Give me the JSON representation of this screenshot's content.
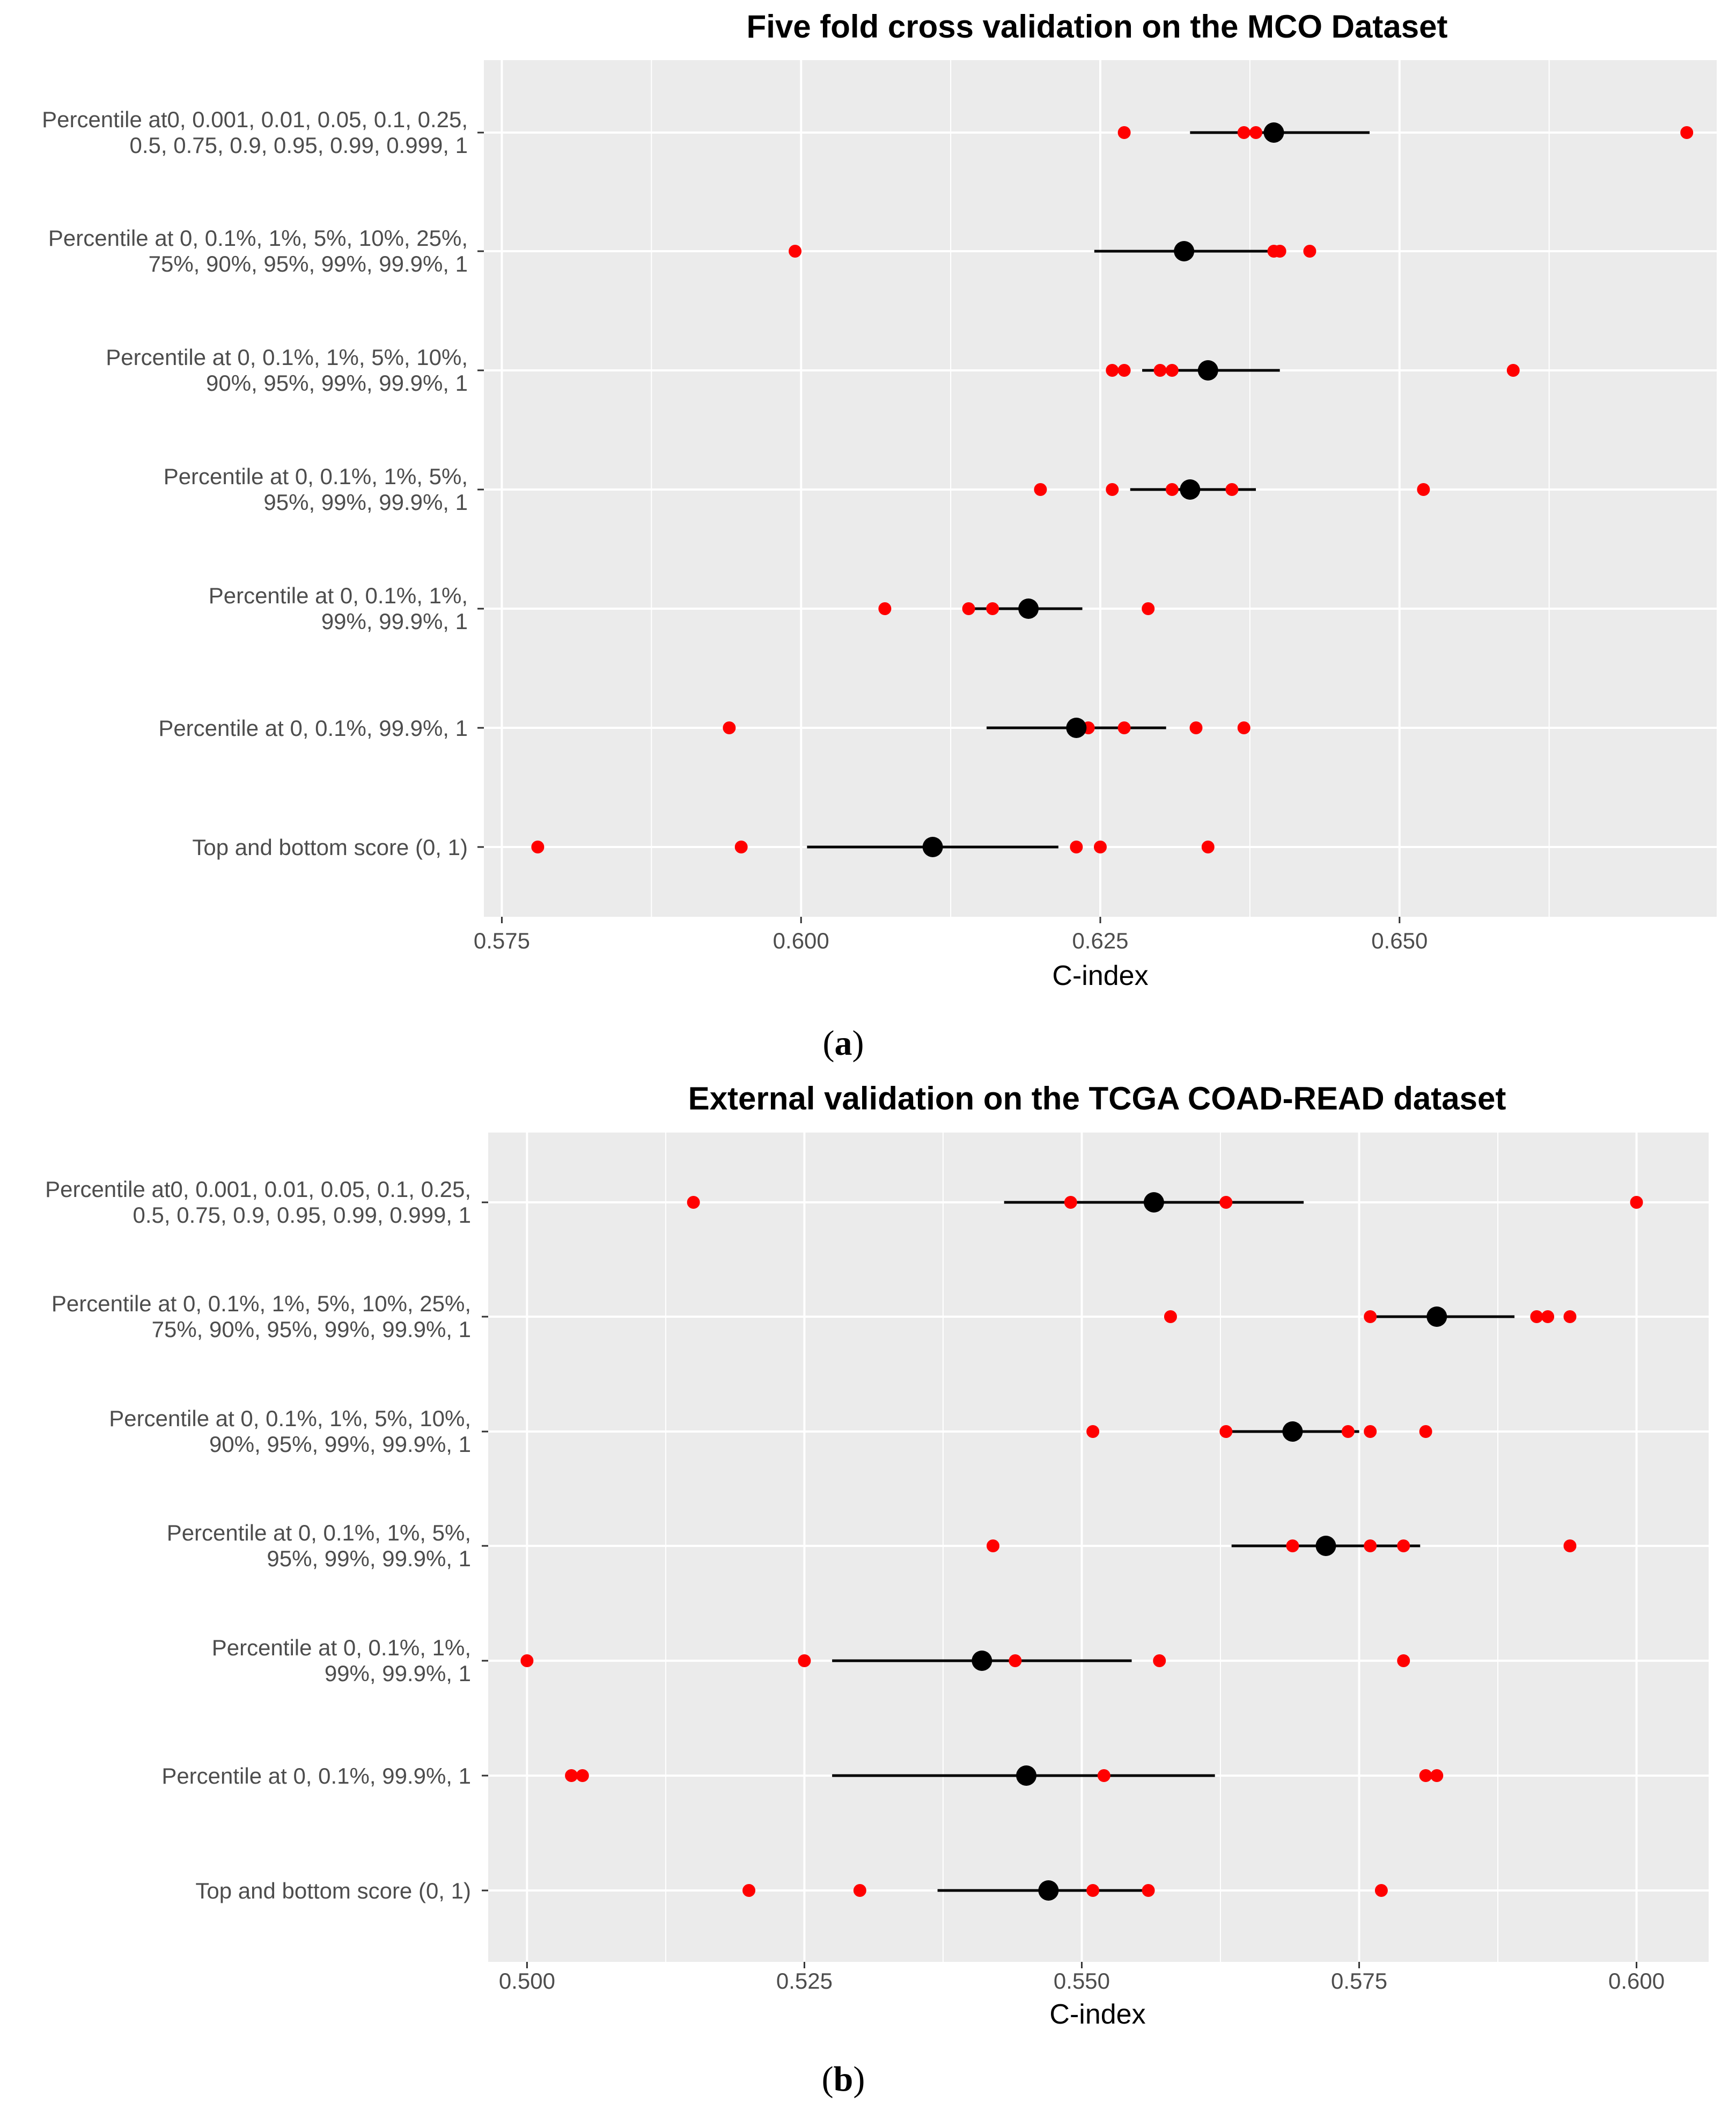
{
  "chart_data": [
    {
      "type": "scatter",
      "caption": "a",
      "title": "Five fold  cross validation on the MCO Dataset",
      "xlabel": "C-index",
      "ylabel": "",
      "xlim": [
        0.5735,
        0.6765
      ],
      "grid": true,
      "x_ticks": [
        0.575,
        0.6,
        0.625,
        0.65
      ],
      "x_tick_labels": [
        "0.575",
        "0.600",
        "0.625",
        "0.650"
      ],
      "rows": [
        {
          "label_lines": [
            "Percentile at0, 0.001, 0.01, 0.05, 0.1, 0.25,",
            "0.5, 0.75, 0.9, 0.95, 0.99, 0.999, 1"
          ],
          "fold_values": [
            0.627,
            0.637,
            0.638,
            0.6395,
            0.674
          ],
          "mean": 0.6395,
          "ci": [
            0.6325,
            0.6475
          ]
        },
        {
          "label_lines": [
            "Percentile at 0, 0.1%, 1%, 5%, 10%, 25%,",
            "75%, 90%, 95%, 99%, 99.9%, 1"
          ],
          "fold_values": [
            0.5995,
            0.632,
            0.6395,
            0.6425,
            0.64
          ],
          "mean": 0.632,
          "ci": [
            0.6245,
            0.64
          ]
        },
        {
          "label_lines": [
            "Percentile at 0, 0.1%, 1%, 5%, 10%,",
            "90%, 95%, 99%, 99.9%, 1"
          ],
          "fold_values": [
            0.626,
            0.627,
            0.63,
            0.631,
            0.6595
          ],
          "mean": 0.634,
          "ci": [
            0.6285,
            0.64
          ]
        },
        {
          "label_lines": [
            "Percentile at 0, 0.1%, 1%, 5%,",
            "95%, 99%, 99.9%, 1"
          ],
          "fold_values": [
            0.62,
            0.626,
            0.631,
            0.636,
            0.652
          ],
          "mean": 0.6325,
          "ci": [
            0.6275,
            0.638
          ]
        },
        {
          "label_lines": [
            "Percentile at 0, 0.1%, 1%,",
            "99%, 99.9%, 1"
          ],
          "fold_values": [
            0.607,
            0.614,
            0.616,
            0.619,
            0.629
          ],
          "mean": 0.619,
          "ci": [
            0.6145,
            0.6235
          ]
        },
        {
          "label_lines": [
            "Percentile at 0, 0.1%, 99.9%, 1"
          ],
          "fold_values": [
            0.594,
            0.624,
            0.627,
            0.633,
            0.637
          ],
          "mean": 0.623,
          "ci": [
            0.6155,
            0.6305
          ]
        },
        {
          "label_lines": [
            "Top and bottom score (0, 1)"
          ],
          "fold_values": [
            0.578,
            0.595,
            0.623,
            0.625,
            0.634
          ],
          "mean": 0.611,
          "ci": [
            0.6005,
            0.6215
          ]
        }
      ]
    },
    {
      "type": "scatter",
      "caption": "b",
      "title": "External validation on the TCGA COAD-READ dataset",
      "xlabel": "C-index",
      "ylabel": "",
      "xlim": [
        0.4965,
        0.6065
      ],
      "grid": true,
      "x_ticks": [
        0.5,
        0.525,
        0.55,
        0.575,
        0.6
      ],
      "x_tick_labels": [
        "0.500",
        "0.525",
        "0.550",
        "0.575",
        "0.600"
      ],
      "rows": [
        {
          "label_lines": [
            "Percentile at0, 0.001, 0.01, 0.05, 0.1, 0.25,",
            "0.5, 0.75, 0.9, 0.95, 0.99, 0.999, 1"
          ],
          "fold_values": [
            0.515,
            0.549,
            0.5565,
            0.563,
            0.6
          ],
          "mean": 0.5565,
          "ci": [
            0.543,
            0.57
          ]
        },
        {
          "label_lines": [
            "Percentile at 0, 0.1%, 1%, 5%, 10%, 25%,",
            "75%, 90%, 95%, 99%, 99.9%, 1"
          ],
          "fold_values": [
            0.558,
            0.576,
            0.591,
            0.592,
            0.594
          ],
          "mean": 0.582,
          "ci": [
            0.5755,
            0.589
          ]
        },
        {
          "label_lines": [
            "Percentile at 0, 0.1%, 1%, 5%, 10%,",
            "90%, 95%, 99%, 99.9%, 1"
          ],
          "fold_values": [
            0.551,
            0.563,
            0.574,
            0.576,
            0.581
          ],
          "mean": 0.569,
          "ci": [
            0.563,
            0.575
          ]
        },
        {
          "label_lines": [
            "Percentile at 0, 0.1%, 1%, 5%,",
            "95%, 99%, 99.9%, 1"
          ],
          "fold_values": [
            0.542,
            0.569,
            0.576,
            0.579,
            0.594
          ],
          "mean": 0.572,
          "ci": [
            0.5635,
            0.5805
          ]
        },
        {
          "label_lines": [
            "Percentile at 0, 0.1%, 1%,",
            "99%, 99.9%, 1"
          ],
          "fold_values": [
            0.5,
            0.525,
            0.544,
            0.557,
            0.579
          ],
          "mean": 0.541,
          "ci": [
            0.5275,
            0.5545
          ]
        },
        {
          "label_lines": [
            "Percentile at 0, 0.1%, 99.9%, 1"
          ],
          "fold_values": [
            0.504,
            0.505,
            0.552,
            0.581,
            0.582
          ],
          "mean": 0.545,
          "ci": [
            0.5275,
            0.562
          ]
        },
        {
          "label_lines": [
            "Top and bottom score (0, 1)"
          ],
          "fold_values": [
            0.52,
            0.53,
            0.551,
            0.556,
            0.577
          ],
          "mean": 0.547,
          "ci": [
            0.537,
            0.5565
          ]
        }
      ]
    }
  ],
  "colors": {
    "panel_bg": "#ebebeb",
    "grid_major": "#ffffff",
    "fold_point": "#ff0000",
    "mean_point": "#000000",
    "ci_line": "#000000",
    "tick_mark": "#333333",
    "label_text": "#4d4d4d"
  }
}
